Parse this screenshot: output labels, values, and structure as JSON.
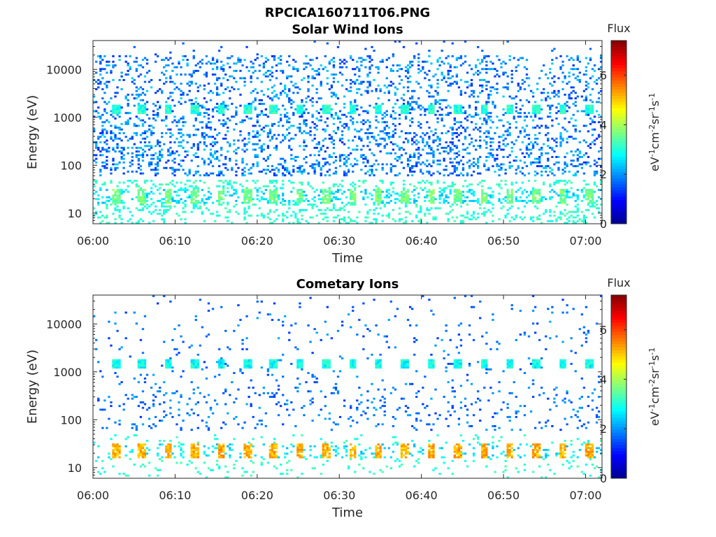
{
  "figure_title": "RPCICA160711T06.PNG",
  "colorscale": [
    "#00008f",
    "#0000ff",
    "#0080ff",
    "#00ffff",
    "#80ff80",
    "#ffff00",
    "#ff8000",
    "#ff0000",
    "#800000"
  ],
  "chart_data": [
    {
      "type": "heatmap",
      "title": "Solar Wind Ions",
      "xlabel": "Time",
      "ylabel": "Energy (eV)",
      "yscale": "log",
      "ylim": [
        6,
        40000
      ],
      "xlim": [
        "06:00",
        "07:02"
      ],
      "x_ticks": [
        "06:00",
        "06:10",
        "06:20",
        "06:30",
        "06:40",
        "06:50",
        "07:00"
      ],
      "y_ticks": [
        "10",
        "100",
        "1000",
        "10000"
      ],
      "colorbar": {
        "label": "Flux",
        "units": "eV-1cm-2sr-1s-1",
        "range": [
          0,
          7.4
        ],
        "ticks": [
          "0",
          "2",
          "4",
          "6"
        ]
      },
      "features": [
        {
          "name": "beam",
          "energy_eV": 1500,
          "flux": 2.6,
          "period_min": 3.2,
          "first_min": 2.8
        },
        {
          "name": "low",
          "energy_eV": 22,
          "flux": 3.6,
          "period_min": 3.2,
          "first_min": 2.8
        },
        {
          "name": "background",
          "energy_eV_range": [
            60,
            20000
          ],
          "flux_range": [
            1.2,
            2.5
          ]
        }
      ],
      "seed": 11
    },
    {
      "type": "heatmap",
      "title": "Cometary Ions",
      "xlabel": "Time",
      "ylabel": "Energy (eV)",
      "yscale": "log",
      "ylim": [
        6,
        40000
      ],
      "xlim": [
        "06:00",
        "07:02"
      ],
      "x_ticks": [
        "06:00",
        "06:10",
        "06:20",
        "06:30",
        "06:40",
        "06:50",
        "07:00"
      ],
      "y_ticks": [
        "10",
        "100",
        "1000",
        "10000"
      ],
      "colorbar": {
        "label": "Flux",
        "units": "eV-1cm-2sr-1s-1",
        "range": [
          0,
          7.4
        ],
        "ticks": [
          "0",
          "2",
          "4",
          "6"
        ]
      },
      "features": [
        {
          "name": "beam",
          "energy_eV": 1500,
          "flux": 2.4,
          "period_min": 3.2,
          "first_min": 2.8
        },
        {
          "name": "low",
          "energy_eV": 22,
          "flux": 5.2,
          "period_min": 3.2,
          "first_min": 2.8
        },
        {
          "name": "background",
          "energy_eV_range": [
            60,
            20000
          ],
          "flux_range": [
            1.3,
            2.2
          ]
        }
      ],
      "seed": 29
    }
  ]
}
